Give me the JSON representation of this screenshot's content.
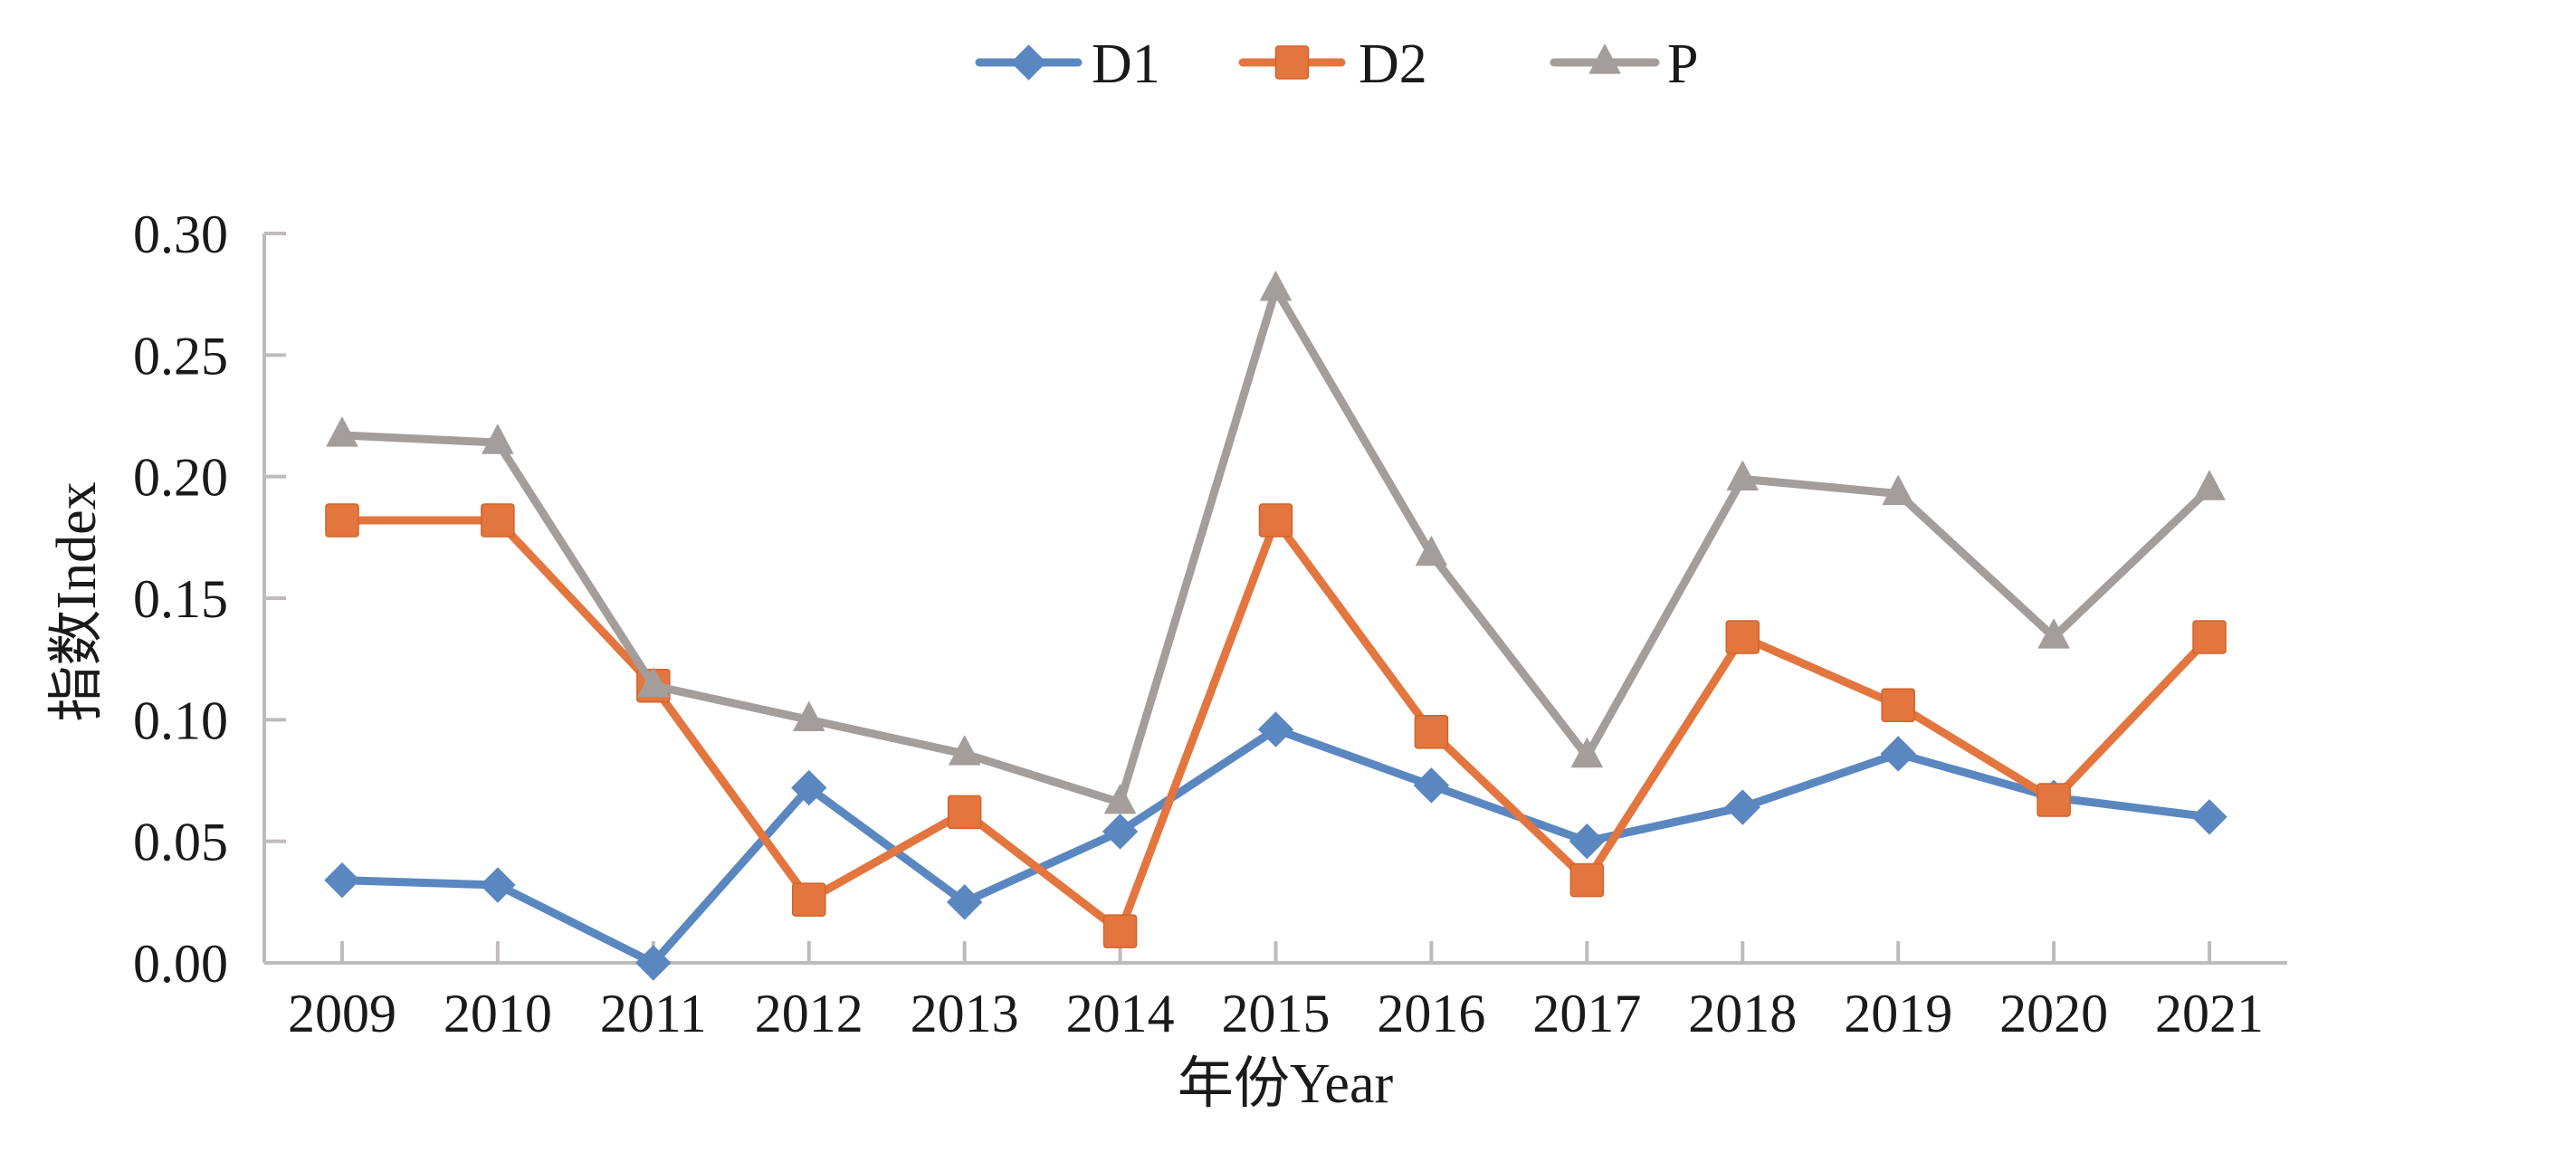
{
  "chart_data": {
    "type": "line",
    "title": "",
    "xlabel": "年份Year",
    "ylabel": "指数Index",
    "categories": [
      "2009",
      "2010",
      "2011",
      "2012",
      "2013",
      "2014",
      "2015",
      "2016",
      "2017",
      "2018",
      "2019",
      "2020",
      "2021"
    ],
    "ylim": [
      0,
      0.3
    ],
    "yticks": [
      "0.00",
      "0.05",
      "0.10",
      "0.15",
      "0.20",
      "0.25",
      "0.30"
    ],
    "ytick_values": [
      0,
      0.05,
      0.1,
      0.15,
      0.2,
      0.25,
      0.3
    ],
    "grid": false,
    "legend_position": "top",
    "series": [
      {
        "name": "D1",
        "marker": "diamond",
        "color": "#5B87C0",
        "values": [
          0.034,
          0.032,
          0.0,
          0.072,
          0.025,
          0.054,
          0.096,
          0.073,
          0.05,
          0.064,
          0.086,
          0.068,
          0.06
        ]
      },
      {
        "name": "D2",
        "marker": "square",
        "color": "#E3763E",
        "values": [
          0.182,
          0.182,
          0.114,
          0.026,
          0.062,
          0.013,
          0.182,
          0.095,
          0.034,
          0.134,
          0.106,
          0.067,
          0.134
        ]
      },
      {
        "name": "P",
        "marker": "triangle",
        "color": "#A39E9B",
        "values": [
          0.217,
          0.214,
          0.114,
          0.1,
          0.086,
          0.066,
          0.277,
          0.168,
          0.085,
          0.199,
          0.193,
          0.134,
          0.195
        ]
      }
    ],
    "axis_color": "#BFBBBB"
  }
}
